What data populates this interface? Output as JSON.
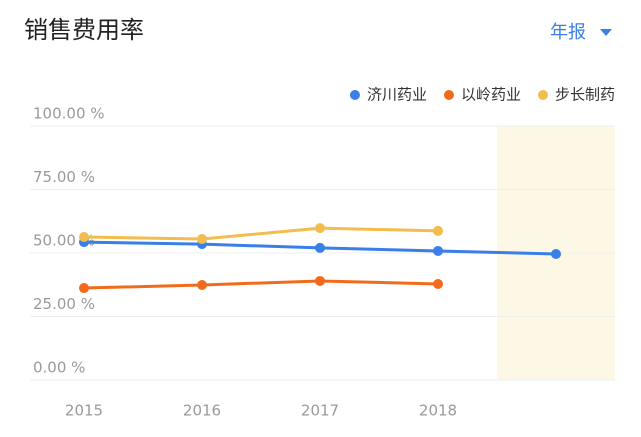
{
  "controls": {
    "period": "年报"
  },
  "chart_data": {
    "type": "line",
    "title": "销售费用率",
    "categories": [
      "2015",
      "2016",
      "2017",
      "2018",
      null
    ],
    "series": [
      {
        "name": "济川药业",
        "color": "#3a7ee8",
        "values": [
          54.3,
          53.5,
          52,
          50.8,
          49.6
        ]
      },
      {
        "name": "以岭药业",
        "color": "#f26b1d",
        "values": [
          36.2,
          37.4,
          39,
          37.8,
          null
        ]
      },
      {
        "name": "步长制药",
        "color": "#f2bc4e",
        "values": [
          56.3,
          55.5,
          59.8,
          58.7,
          null
        ]
      }
    ],
    "ylim": [
      0,
      100
    ],
    "yticks": [
      {
        "value": 0,
        "label": "0.00 %"
      },
      {
        "value": 25,
        "label": "25.00 %"
      },
      {
        "value": 50,
        "label": "50.00 %"
      },
      {
        "value": 75,
        "label": "75.00 %"
      },
      {
        "value": 100,
        "label": "100.00 %"
      }
    ],
    "grid": true,
    "legend": "top-right"
  }
}
